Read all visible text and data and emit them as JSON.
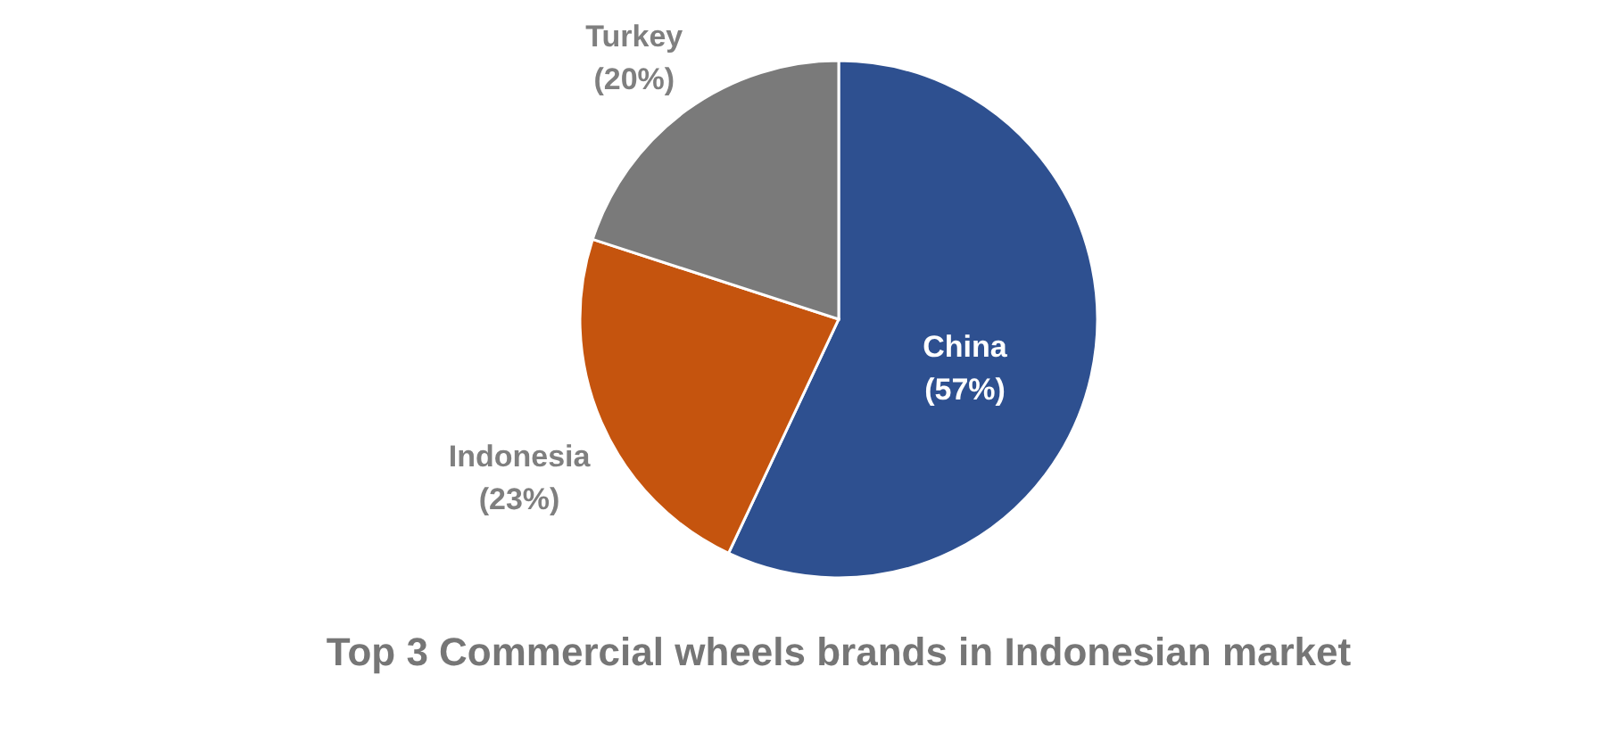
{
  "chart_data": {
    "type": "pie",
    "title": "Top 3 Commercial wheels brands in Indonesian market",
    "categories": [
      "China",
      "Indonesia",
      "Turkey"
    ],
    "values": [
      57,
      23,
      20
    ],
    "value_labels": [
      "(57%)",
      "(23%)",
      "(20%)"
    ],
    "colors": [
      "#2e5090",
      "#c5540e",
      "#7a7a7a"
    ],
    "legend": false
  }
}
